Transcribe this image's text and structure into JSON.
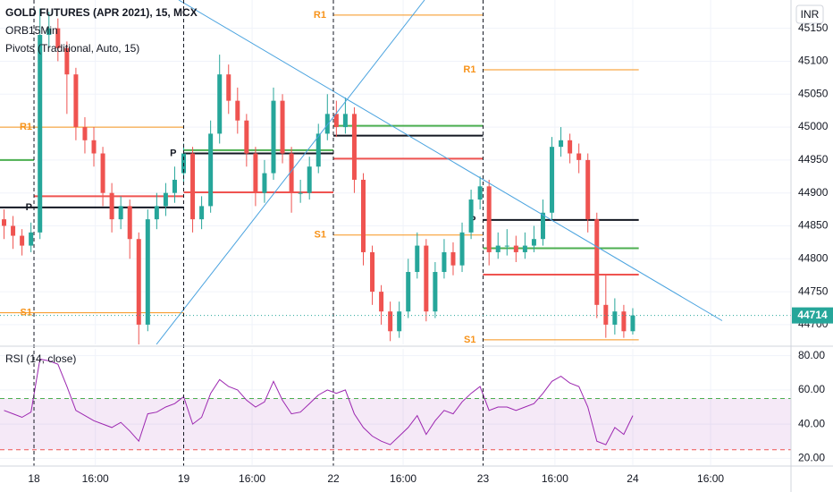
{
  "chart_data": {
    "type": "candlestick",
    "title": "GOLD FUTURES (APR 2021), 15, MCX",
    "indicators": [
      "ORB15Min",
      "Pivots (Traditional, Auto, 15)"
    ],
    "currency": "INR",
    "x": [
      -0.2,
      -0.14,
      -0.08,
      -0.02,
      0.04,
      0.1,
      0.16,
      0.22,
      0.28,
      0.34,
      0.4,
      0.46,
      0.52,
      0.58,
      0.64,
      0.7,
      0.76,
      0.82,
      0.88,
      0.94,
      1.0,
      1.06,
      1.12,
      1.18,
      1.24,
      1.3,
      1.36,
      1.42,
      1.48,
      1.54,
      1.6,
      1.66,
      1.72,
      1.78,
      1.84,
      1.9,
      1.96,
      2.02,
      2.08,
      2.14,
      2.2,
      2.26,
      2.32,
      2.38,
      2.44,
      2.5,
      2.56,
      2.62,
      2.68,
      2.74,
      2.8,
      2.86,
      2.92,
      2.98,
      3.04,
      3.1,
      3.16,
      3.22,
      3.28,
      3.34,
      3.4,
      3.46,
      3.52,
      3.58,
      3.64,
      3.7,
      3.76,
      3.82,
      3.88,
      3.94,
      4.0
    ],
    "open": [
      44860,
      44850,
      44835,
      44820,
      44840,
      45140,
      45150,
      45120,
      45080,
      45000,
      44980,
      44960,
      44900,
      44860,
      44880,
      44830,
      44700,
      44860,
      44880,
      44900,
      44930,
      44960,
      44860,
      44880,
      44990,
      45080,
      45040,
      45010,
      44960,
      44900,
      44930,
      45040,
      44960,
      44900,
      44900,
      44940,
      44990,
      45020,
      45000,
      45020,
      44920,
      44810,
      44750,
      44720,
      44690,
      44720,
      44780,
      44820,
      44720,
      44780,
      44810,
      44790,
      44840,
      44890,
      44910,
      44810,
      44820,
      44820,
      44810,
      44820,
      44830,
      44870,
      44970,
      44980,
      44960,
      44950,
      44860,
      44730,
      44700,
      44720,
      44690
    ],
    "high": [
      44875,
      44865,
      44845,
      44855,
      45180,
      45175,
      45165,
      45130,
      45090,
      45015,
      45000,
      44970,
      44915,
      44895,
      44890,
      44840,
      44875,
      44900,
      44915,
      44940,
      44975,
      44970,
      44895,
      45010,
      45110,
      45095,
      45060,
      45020,
      44970,
      44950,
      45060,
      45050,
      44970,
      44920,
      44955,
      45005,
      45050,
      45040,
      45045,
      45030,
      44930,
      44820,
      44760,
      44735,
      44735,
      44800,
      44840,
      44830,
      44795,
      44830,
      44825,
      44855,
      44905,
      44925,
      44920,
      44840,
      44845,
      44835,
      44840,
      44850,
      44890,
      44985,
      45000,
      44990,
      44975,
      44960,
      44870,
      44775,
      44740,
      44730,
      44725
    ],
    "low": [
      44830,
      44815,
      44805,
      44810,
      44830,
      45120,
      45100,
      45020,
      44980,
      44960,
      44940,
      44880,
      44840,
      44845,
      44800,
      44670,
      44690,
      44845,
      44865,
      44885,
      44915,
      44840,
      44845,
      44870,
      44975,
      45020,
      44990,
      44940,
      44880,
      44885,
      44920,
      44945,
      44870,
      44885,
      44890,
      44930,
      44980,
      44985,
      44990,
      44900,
      44790,
      44730,
      44700,
      44675,
      44680,
      44710,
      44770,
      44705,
      44710,
      44770,
      44775,
      44780,
      44830,
      44875,
      44790,
      44800,
      44805,
      44795,
      44800,
      44810,
      44820,
      44860,
      44955,
      44945,
      44930,
      44840,
      44710,
      44680,
      44685,
      44680,
      44685
    ],
    "close": [
      44850,
      44835,
      44820,
      44840,
      45140,
      45150,
      45120,
      45080,
      45000,
      44980,
      44960,
      44900,
      44860,
      44880,
      44830,
      44700,
      44860,
      44880,
      44900,
      44920,
      44960,
      44860,
      44880,
      44990,
      45080,
      45040,
      45010,
      44960,
      44900,
      44930,
      45040,
      44960,
      44900,
      44900,
      44940,
      44990,
      45020,
      45000,
      45020,
      44920,
      44810,
      44750,
      44720,
      44690,
      44720,
      44780,
      44820,
      44720,
      44780,
      44810,
      44790,
      44840,
      44890,
      44910,
      44810,
      44820,
      44820,
      44810,
      44820,
      44830,
      44870,
      44970,
      44980,
      44960,
      44950,
      44860,
      44730,
      44700,
      44720,
      44690,
      44714
    ],
    "up_color": "#26a69a",
    "down_color": "#ef5350",
    "xlim": [
      -0.227,
      5.057
    ],
    "xticks": [
      {
        "value": 0,
        "label": "18"
      },
      {
        "value": 0.41,
        "label": "16:00"
      },
      {
        "value": 1,
        "label": "19"
      },
      {
        "value": 1.457,
        "label": "16:00"
      },
      {
        "value": 2,
        "label": "22"
      },
      {
        "value": 2.466,
        "label": "16:00"
      },
      {
        "value": 3,
        "label": "23"
      },
      {
        "value": 3.48,
        "label": "16:00"
      },
      {
        "value": 4,
        "label": "24"
      },
      {
        "value": 4.52,
        "label": "16:00"
      }
    ],
    "ylim": [
      44670,
      45193
    ],
    "yticks": [
      45150,
      45100,
      45050,
      45000,
      44950,
      44900,
      44850,
      44800,
      44750,
      44700
    ],
    "grid": true,
    "levels": [
      {
        "label": "R1",
        "value": 45000,
        "x": [
          -0.23,
          1
        ],
        "color": "#f7931a"
      },
      {
        "label": "P",
        "value": 44878,
        "x": [
          -0.23,
          1
        ],
        "color": "#131722"
      },
      {
        "label": "S1",
        "value": 44718,
        "x": [
          -0.23,
          1
        ],
        "color": "#f7931a"
      },
      {
        "value": 44950,
        "x": [
          -0.23,
          0
        ],
        "color": "#4caf50"
      },
      {
        "value": 44895,
        "x": [
          0,
          1
        ],
        "color": "#ef5350"
      },
      {
        "label": "P",
        "value": 44960,
        "x": [
          1,
          2
        ],
        "color": "#131722"
      },
      {
        "value": 44965,
        "x": [
          1,
          2
        ],
        "color": "#4caf50"
      },
      {
        "value": 44901,
        "x": [
          1,
          2
        ],
        "color": "#ef5350"
      },
      {
        "label": "R1",
        "value": 45170,
        "x": [
          2,
          3
        ],
        "color": "#f7931a"
      },
      {
        "label": "S1",
        "value": 44836,
        "x": [
          2,
          3
        ],
        "color": "#f7931a"
      },
      {
        "value": 45002,
        "x": [
          2,
          3
        ],
        "color": "#4caf50"
      },
      {
        "value": 44987,
        "x": [
          2,
          3
        ],
        "color": "#131722"
      },
      {
        "value": 44952,
        "x": [
          2,
          3
        ],
        "color": "#ef5350"
      },
      {
        "label": "R1",
        "value": 45087,
        "x": [
          3,
          4.04
        ],
        "color": "#f7931a"
      },
      {
        "label": "P",
        "value": 44859,
        "x": [
          3,
          4.04
        ],
        "color": "#131722"
      },
      {
        "label": "S1",
        "value": 44677,
        "x": [
          3,
          4.04
        ],
        "color": "#f7931a"
      },
      {
        "value": 44816,
        "x": [
          3,
          4.04
        ],
        "color": "#4caf50"
      },
      {
        "value": 44776,
        "x": [
          3,
          4.04
        ],
        "color": "#ef5350"
      }
    ],
    "trendlines": [
      {
        "x": [
          0.967,
          4.597
        ],
        "y": [
          45193,
          44706
        ],
        "color": "#4aa3df"
      },
      {
        "x": [
          0.818,
          2.609
        ],
        "y": [
          44670,
          45193
        ],
        "color": "#4aa3df"
      }
    ],
    "rsi": {
      "title": "RSI (14, close)",
      "values": [
        48,
        46,
        44,
        47,
        78,
        77,
        75,
        62,
        48,
        45,
        42,
        40,
        38,
        41,
        36,
        30,
        46,
        47,
        50,
        52,
        56,
        40,
        44,
        58,
        66,
        62,
        60,
        54,
        50,
        53,
        65,
        54,
        46,
        47,
        52,
        57,
        60,
        58,
        60,
        46,
        38,
        33,
        30,
        28,
        33,
        38,
        45,
        34,
        42,
        48,
        46,
        53,
        58,
        62,
        48,
        50,
        50,
        48,
        50,
        52,
        58,
        65,
        68,
        64,
        62,
        50,
        30,
        28,
        38,
        34,
        45
      ],
      "color": "#9c27b0",
      "ylim": [
        16,
        84
      ],
      "yticks": [
        {
          "value": 80,
          "label": "80.00"
        },
        {
          "value": 60,
          "label": "60.00"
        },
        {
          "value": 40,
          "label": "40.00"
        },
        {
          "value": 20,
          "label": "20.00"
        }
      ],
      "upper": 55,
      "lower": 25
    }
  }
}
